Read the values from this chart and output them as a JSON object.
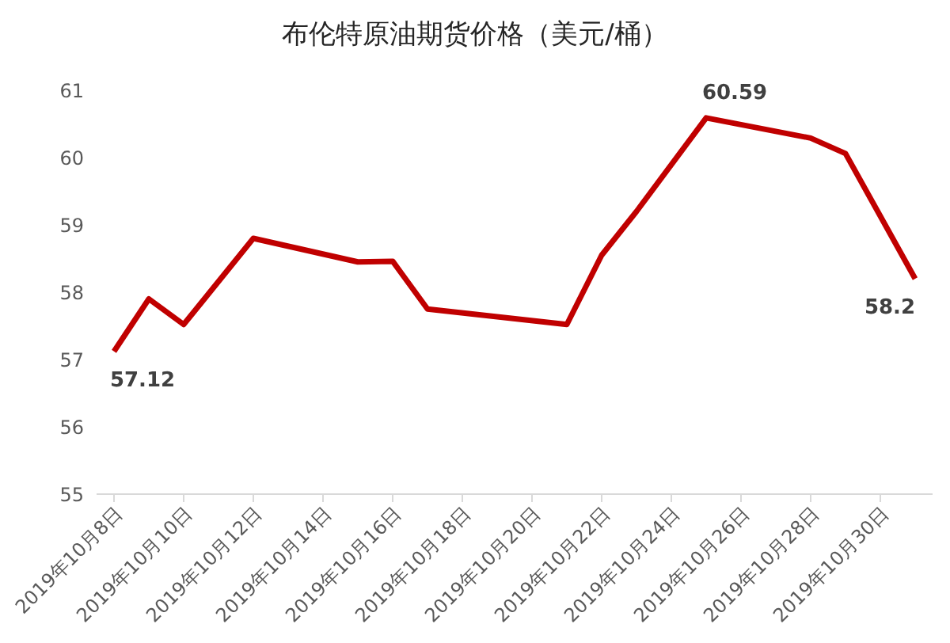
{
  "chart_data": {
    "type": "line",
    "title": "布伦特原油期货价格（美元/桶）",
    "x": [
      "2019-10-08",
      "2019-10-09",
      "2019-10-10",
      "2019-10-12",
      "2019-10-15",
      "2019-10-16",
      "2019-10-17",
      "2019-10-21",
      "2019-10-22",
      "2019-10-23",
      "2019-10-25",
      "2019-10-28",
      "2019-10-29",
      "2019-10-31"
    ],
    "series": [
      {
        "color": "#c00000",
        "values": [
          57.12,
          57.9,
          57.52,
          58.8,
          58.45,
          58.46,
          57.75,
          57.52,
          58.55,
          59.2,
          60.59,
          60.29,
          60.06,
          58.2
        ],
        "value_labels": [
          "57.12",
          null,
          null,
          null,
          null,
          null,
          null,
          null,
          null,
          null,
          "60.59",
          null,
          null,
          "58.2"
        ]
      }
    ],
    "xlim": [
      "2019-10-07T12:00",
      "2019-10-31T12:00"
    ],
    "xticks": [
      {
        "value": "2019-10-08",
        "label": "2019年10月8日"
      },
      {
        "value": "2019-10-10",
        "label": "2019年10月10日"
      },
      {
        "value": "2019-10-12",
        "label": "2019年10月12日"
      },
      {
        "value": "2019-10-14",
        "label": "2019年10月14日"
      },
      {
        "value": "2019-10-16",
        "label": "2019年10月16日"
      },
      {
        "value": "2019-10-18",
        "label": "2019年10月18日"
      },
      {
        "value": "2019-10-20",
        "label": "2019年10月20日"
      },
      {
        "value": "2019-10-22",
        "label": "2019年10月22日"
      },
      {
        "value": "2019-10-24",
        "label": "2019年10月24日"
      },
      {
        "value": "2019-10-26",
        "label": "2019年10月26日"
      },
      {
        "value": "2019-10-28",
        "label": "2019年10月28日"
      },
      {
        "value": "2019-10-30",
        "label": "2019年10月30日"
      }
    ],
    "ylim": [
      55,
      61
    ],
    "yticks": [
      55,
      56,
      57,
      58,
      59,
      60,
      61
    ],
    "grid": false,
    "legend": false,
    "marker": "none",
    "line_style": "solid"
  }
}
